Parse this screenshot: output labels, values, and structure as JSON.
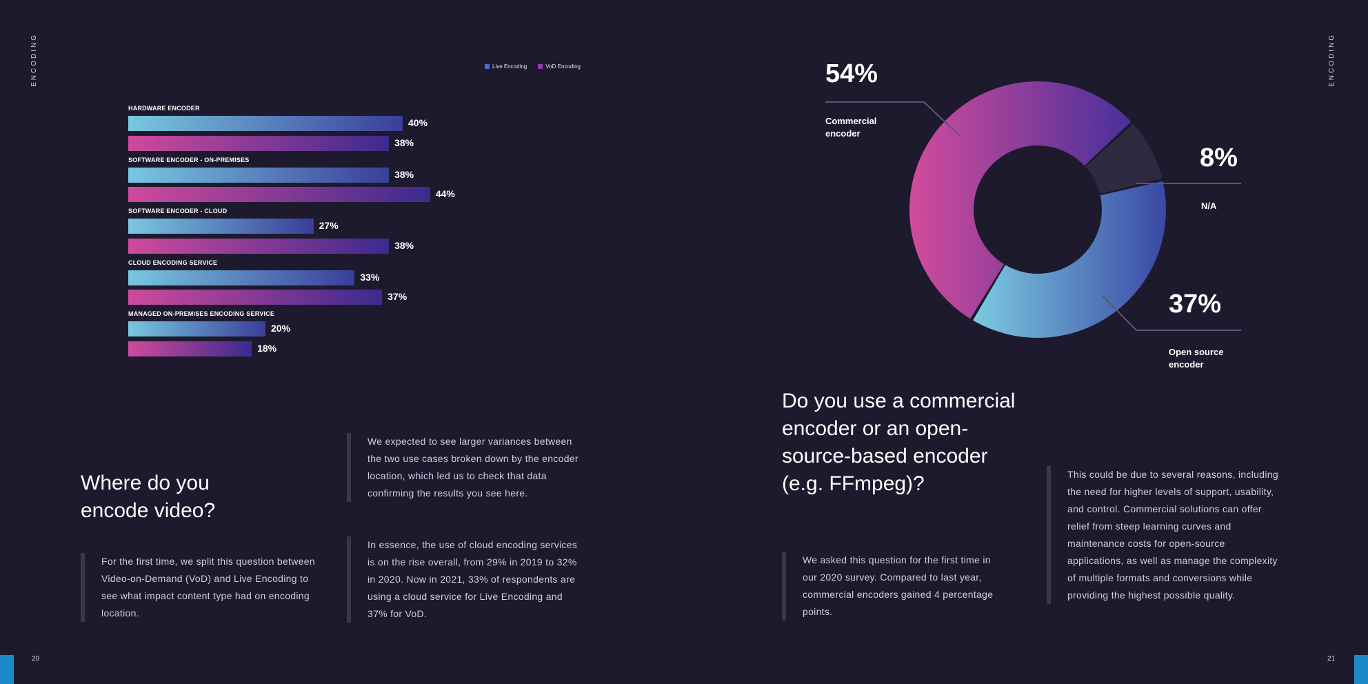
{
  "left_page": {
    "section": "ENCODING",
    "page_number": "20",
    "heading": "Where do you encode video?",
    "text_intro": "For the first time, we split this question between Video-on-Demand (VoD) and Live Encoding to see what impact content type had on encoding location.",
    "text_variances": "We expected to see larger variances between the two use cases broken down by the encoder location, which led us to check that data confirming the results you see here.",
    "text_cloud": "In essence, the use of cloud encoding services is on the rise overall, from 29% in 2019 to 32% in 2020. Now in 2021, 33% of respondents are using a cloud service for Live Encoding and 37% for VoD."
  },
  "right_page": {
    "section": "ENCODING",
    "page_number": "21",
    "heading": "Do you use a commercial encoder or an open-source-based encoder (e.g. FFmpeg)?",
    "text_asked": "We asked this question for the first time in our 2020 survey. Compared to last year, commercial encoders gained 4 percentage points.",
    "text_reasons": "This could be due to several reasons, including the need for higher levels of support, usability, and control. Commercial solutions can offer relief from steep learning curves and maintenance costs for open-source applications, as well as manage the complexity of multiple formats and conversions while providing the highest possible quality."
  },
  "colors": {
    "background": "#1d1a2e",
    "live": "#6fbfe0",
    "vod": "#c84aa0",
    "na": "#2e2a40",
    "accent": "#1d88c8"
  },
  "chart_data": [
    {
      "type": "bar",
      "orientation": "horizontal",
      "title": "Where do you encode video?",
      "legend": [
        "Live Encoding",
        "VoD Encoding"
      ],
      "categories": [
        "HARDWARE ENCODER",
        "SOFTWARE ENCODER - ON-PREMISES",
        "SOFTWARE ENCODER - CLOUD",
        "CLOUD ENCODING SERVICE",
        "MANAGED ON-PREMISES ENCODING SERVICE"
      ],
      "series": [
        {
          "name": "Live Encoding",
          "values": [
            40,
            38,
            27,
            33,
            20
          ],
          "labels": [
            "40%",
            "38%",
            "27%",
            "33%",
            "20%"
          ]
        },
        {
          "name": "VoD Encoding",
          "values": [
            38,
            44,
            38,
            37,
            18
          ],
          "labels": [
            "38%",
            "44%",
            "38%",
            "37%",
            "18%"
          ]
        }
      ],
      "xlim": [
        0,
        100
      ],
      "grid": false,
      "legend_position": "top-right"
    },
    {
      "type": "pie",
      "subtype": "donut",
      "title": "Do you use a commercial encoder or an open-source-based encoder (e.g. FFmpeg)?",
      "slices": [
        {
          "label": "Commercial encoder",
          "value": 54,
          "display": "54%"
        },
        {
          "label": "N/A",
          "value": 8,
          "display": "8%"
        },
        {
          "label": "Open source encoder",
          "value": 37,
          "display": "37%"
        }
      ]
    }
  ]
}
